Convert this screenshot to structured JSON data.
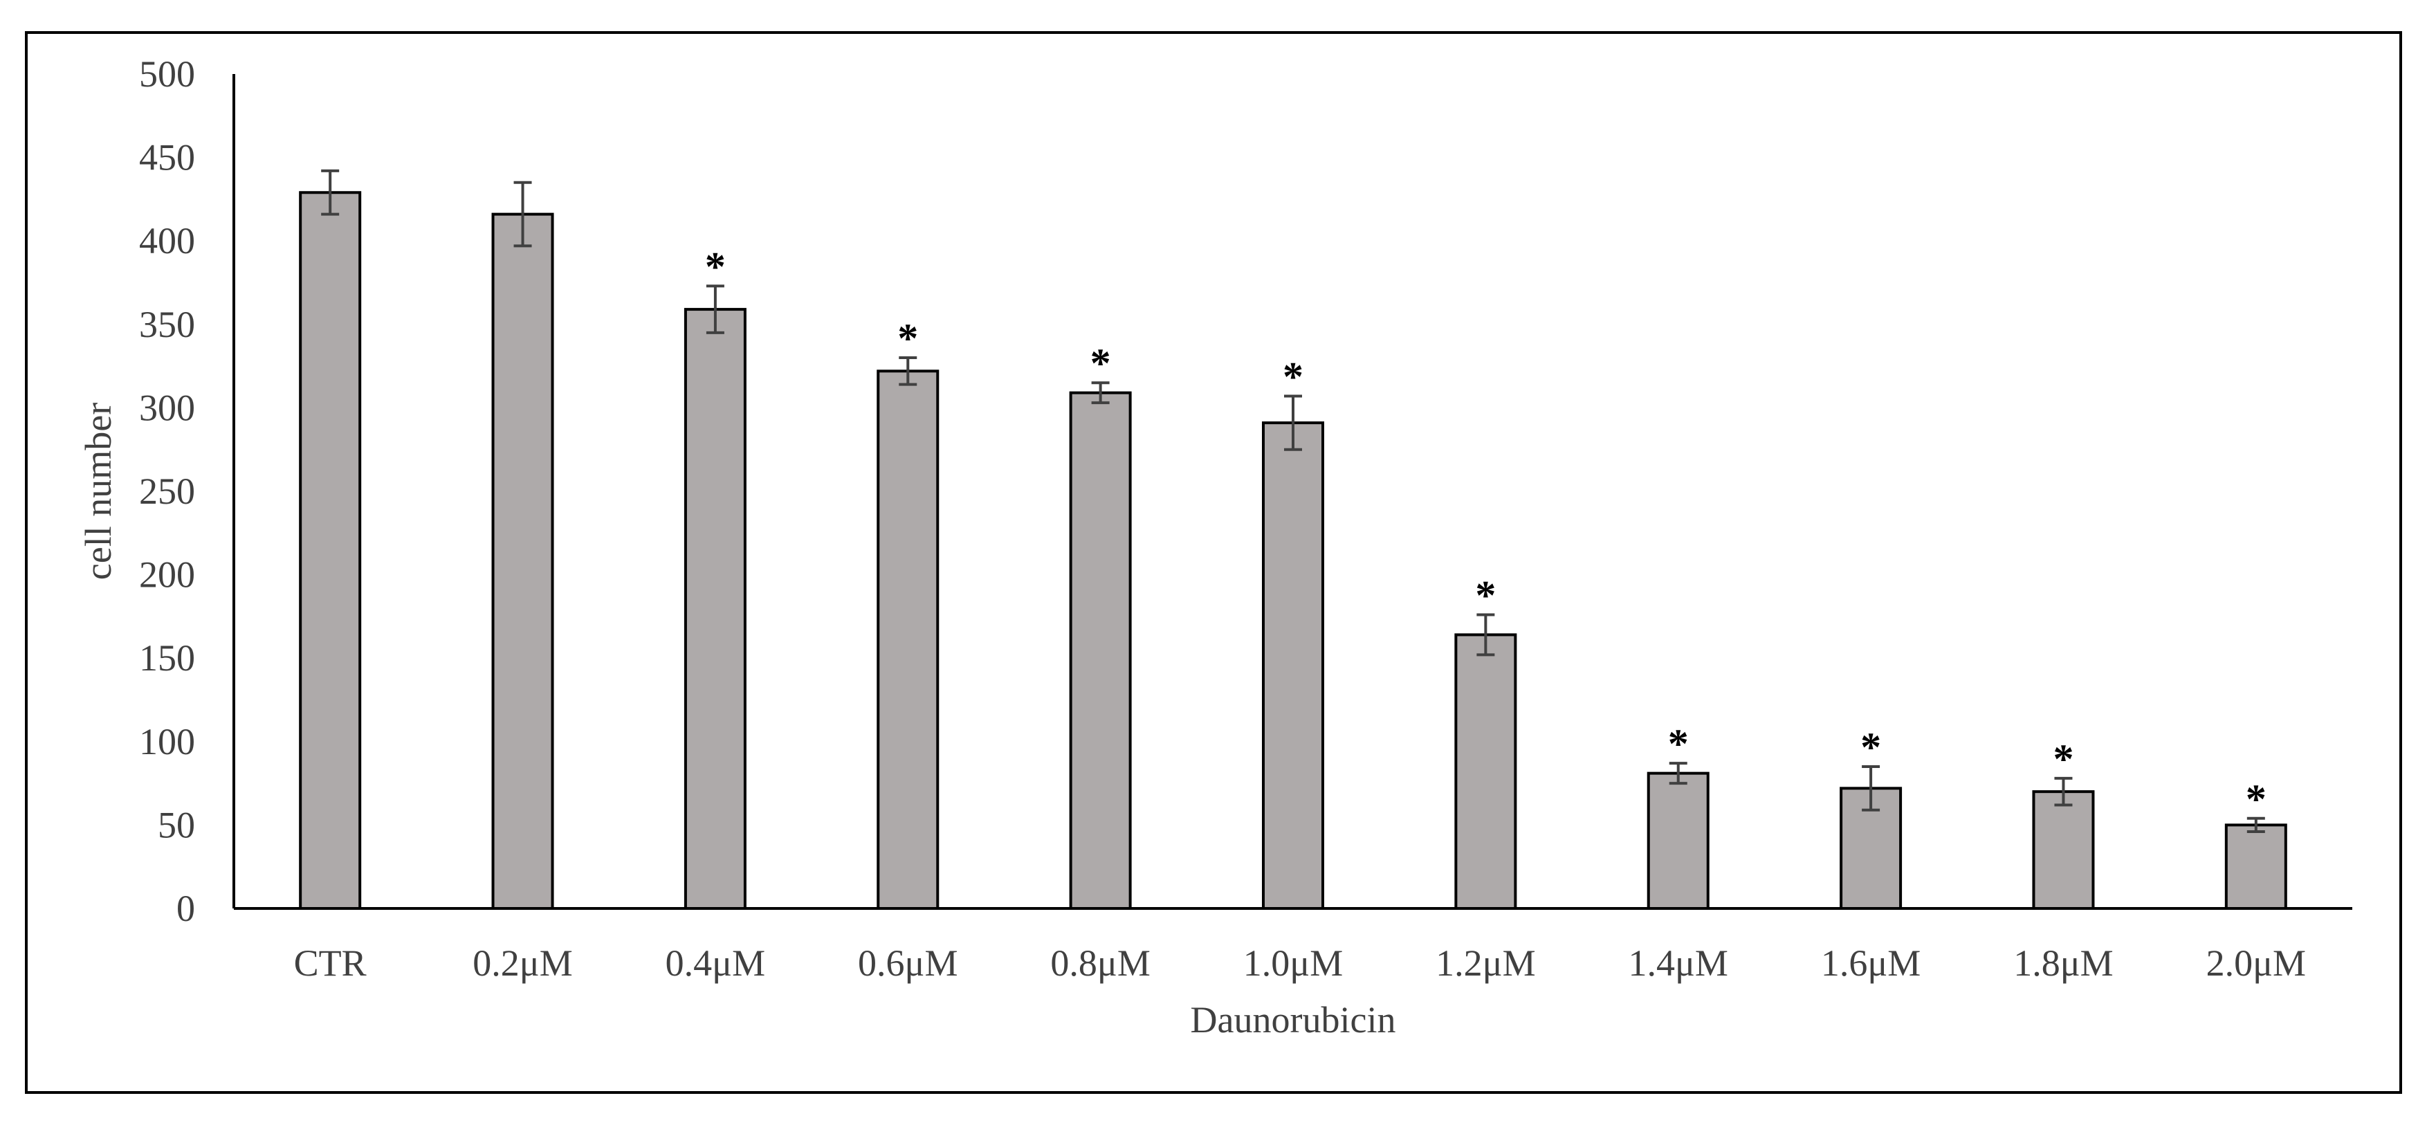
{
  "chart_data": {
    "type": "bar",
    "title": "",
    "xlabel": "Daunorubicin",
    "ylabel": "cell number",
    "ylim": [
      0,
      500
    ],
    "yticks": [
      0,
      50,
      100,
      150,
      200,
      250,
      300,
      350,
      400,
      450,
      500
    ],
    "grid": false,
    "legend": "none",
    "categories": [
      "CTR",
      "0.2μM",
      "0.4μM",
      "0.6μM",
      "0.8μM",
      "1.0μM",
      "1.2μM",
      "1.4μM",
      "1.6μM",
      "1.8μM",
      "2.0μM"
    ],
    "series": [
      {
        "values": [
          429,
          416,
          359,
          322,
          309,
          291,
          164,
          81,
          72,
          70,
          50
        ],
        "error": [
          13,
          19,
          14,
          8,
          6,
          16,
          12,
          6,
          13,
          8,
          4
        ],
        "annotations": [
          "",
          "",
          "*",
          "*",
          "*",
          "*",
          "*",
          "*",
          "*",
          "*",
          "*"
        ]
      }
    ],
    "colors": {
      "bar_fill": "#aeaaaa",
      "bar_stroke": "#000000",
      "error_bar": "#404040",
      "axis": "#000000",
      "text": "#404040",
      "frame": "#000000"
    }
  }
}
